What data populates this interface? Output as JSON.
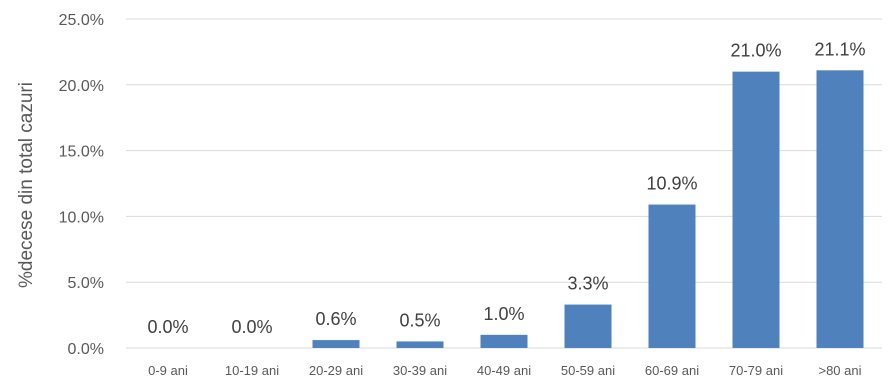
{
  "chart_data": {
    "type": "bar",
    "title": "",
    "xlabel": "",
    "ylabel": "%decese din total cazuri",
    "categories": [
      "0-9 ani",
      "10-19 ani",
      "20-29 ani",
      "30-39 ani",
      "40-49 ani",
      "50-59 ani",
      "60-69 ani",
      "70-79 ani",
      ">80 ani"
    ],
    "values": [
      0.0,
      0.0,
      0.6,
      0.5,
      1.0,
      3.3,
      10.9,
      21.0,
      21.1
    ],
    "data_labels": [
      "0.0%",
      "0.0%",
      "0.6%",
      "0.5%",
      "1.0%",
      "3.3%",
      "10.9%",
      "21.0%",
      "21.1%"
    ],
    "ylim": [
      0,
      25
    ],
    "y_ticks": [
      0,
      5,
      10,
      15,
      20,
      25
    ],
    "y_tick_labels": [
      "0.0%",
      "5.0%",
      "10.0%",
      "15.0%",
      "20.0%",
      "25.0%"
    ],
    "grid": true,
    "legend": "none",
    "colors": {
      "bar": "#4f81bd",
      "grid": "#d9d9d9"
    }
  }
}
